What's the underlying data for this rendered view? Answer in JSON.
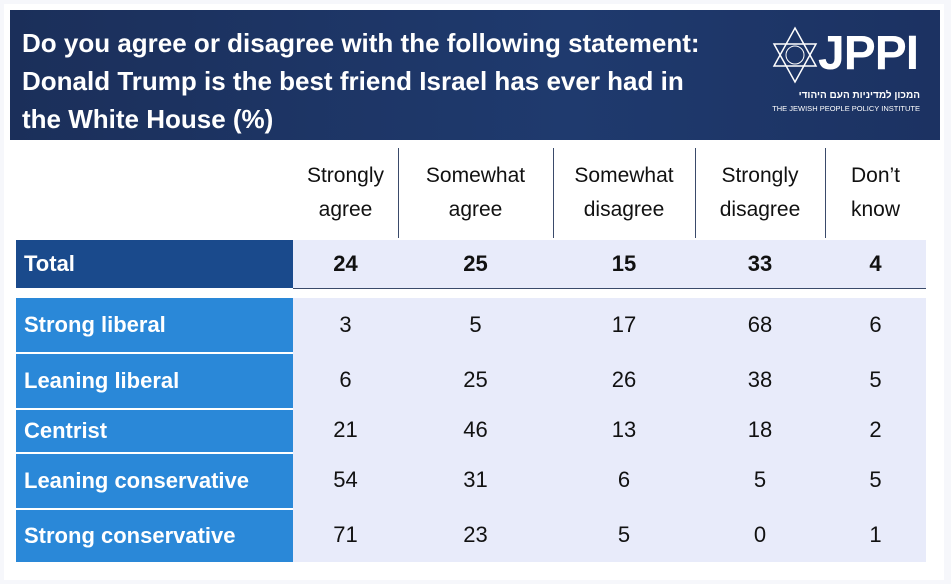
{
  "title": "Do you agree or disagree with the following statement: Donald Trump is the best friend Israel has ever had in the White House (%)",
  "logo": {
    "name": "JPPI",
    "hebrew": "המכון למדיניות העם היהודי",
    "english": "THE JEWISH PEOPLE POLICY INSTITUTE"
  },
  "colors": {
    "header_bg": "#1f3a6e",
    "total_bg": "#1a4a8c",
    "row_bg": "#2a88d8",
    "cell_bg": "#e8ebfa"
  },
  "columns": [
    "Strongly agree",
    "Somewhat agree",
    "Somewhat disagree",
    "Strongly disagree",
    "Don’t know"
  ],
  "total": {
    "label": "Total",
    "values": [
      "24",
      "25",
      "15",
      "33",
      "4"
    ]
  },
  "rows": [
    {
      "label": "Strong liberal",
      "values": [
        "3",
        "5",
        "17",
        "68",
        "6"
      ]
    },
    {
      "label": "Leaning liberal",
      "values": [
        "6",
        "25",
        "26",
        "38",
        "5"
      ]
    },
    {
      "label": "Centrist",
      "values": [
        "21",
        "46",
        "13",
        "18",
        "2"
      ]
    },
    {
      "label": "Leaning conservative",
      "values": [
        "54",
        "31",
        "6",
        "5",
        "5"
      ]
    },
    {
      "label": "Strong conservative",
      "values": [
        "71",
        "23",
        "5",
        "0",
        "1"
      ]
    }
  ]
}
